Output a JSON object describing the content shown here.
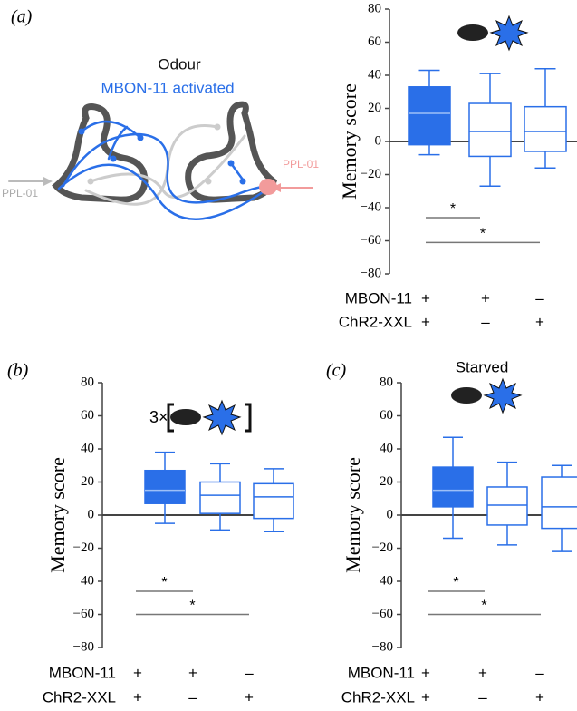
{
  "diagram": {
    "title": "Odour",
    "subtitle": "MBON-11 activated",
    "left_label": "PPL-01",
    "right_label": "PPL-01"
  },
  "chart_data": [
    {
      "type": "box",
      "panel": "(a)",
      "ylabel": "Memory score",
      "color": "#2a6fe8",
      "ylim": [
        -80,
        80
      ],
      "yticks": [
        80,
        60,
        40,
        20,
        0,
        {
          "value": -20,
          "label": "−20"
        },
        {
          "value": -40,
          "label": "−40"
        },
        {
          "value": -60,
          "label": "−60"
        },
        {
          "value": -80,
          "label": "−80"
        }
      ],
      "boxes": [
        {
          "whislo": -8,
          "q1": -2,
          "med": 17,
          "q3": 33,
          "whishi": 43,
          "filled": true
        },
        {
          "whislo": -27,
          "q1": -9,
          "med": 6,
          "q3": 23,
          "whishi": 41,
          "filled": false
        },
        {
          "whislo": -16,
          "q1": -6,
          "med": 6,
          "q3": 21,
          "whishi": 44,
          "filled": false
        }
      ],
      "rows": [
        {
          "name": "MBON-11",
          "marks": [
            "+",
            "+",
            "–"
          ]
        },
        {
          "name": "ChR2-XXL",
          "marks": [
            "+",
            "–",
            "+"
          ]
        }
      ],
      "significance": [
        {
          "y": -46,
          "span": [
            0,
            1
          ],
          "label": "*"
        },
        {
          "y": -61,
          "span": [
            0,
            2
          ],
          "label": "*"
        }
      ]
    },
    {
      "type": "box",
      "panel": "(b)",
      "ylabel": "Memory score",
      "annotation": "3×",
      "color": "#2a6fe8",
      "ylim": [
        -80,
        80
      ],
      "yticks": [
        80,
        60,
        40,
        20,
        0,
        {
          "value": -20,
          "label": "−20"
        },
        {
          "value": -40,
          "label": "−40"
        },
        {
          "value": -60,
          "label": "−60"
        },
        {
          "value": -80,
          "label": "−80"
        }
      ],
      "boxes": [
        {
          "whislo": -5,
          "q1": 7,
          "med": 15,
          "q3": 27,
          "whishi": 38,
          "filled": true
        },
        {
          "whislo": -9,
          "q1": 1,
          "med": 12,
          "q3": 20,
          "whishi": 31,
          "filled": false
        },
        {
          "whislo": -10,
          "q1": -2,
          "med": 11,
          "q3": 19,
          "whishi": 28,
          "filled": false
        }
      ],
      "rows": [
        {
          "name": "MBON-11",
          "marks": [
            "+",
            "+",
            "–"
          ]
        },
        {
          "name": "ChR2-XXL",
          "marks": [
            "+",
            "–",
            "+"
          ]
        }
      ],
      "significance": [
        {
          "y": -46,
          "span": [
            0,
            1
          ],
          "label": "*"
        },
        {
          "y": -60,
          "span": [
            0,
            2
          ],
          "label": "*"
        }
      ]
    },
    {
      "type": "box",
      "panel": "(c)",
      "title": "Starved",
      "ylabel": "Memory score",
      "color": "#2a6fe8",
      "ylim": [
        -80,
        80
      ],
      "yticks": [
        80,
        60,
        40,
        20,
        0,
        {
          "value": -20,
          "label": "−20"
        },
        {
          "value": -40,
          "label": "−40"
        },
        {
          "value": -60,
          "label": "−60"
        },
        {
          "value": -80,
          "label": "−80"
        }
      ],
      "boxes": [
        {
          "whislo": -14,
          "q1": 5,
          "med": 15,
          "q3": 29,
          "whishi": 47,
          "filled": true
        },
        {
          "whislo": -18,
          "q1": -6,
          "med": 6,
          "q3": 17,
          "whishi": 32,
          "filled": false
        },
        {
          "whislo": -22,
          "q1": -8,
          "med": 5,
          "q3": 23,
          "whishi": 30,
          "filled": false
        }
      ],
      "rows": [
        {
          "name": "MBON-11",
          "marks": [
            "+",
            "+",
            "–"
          ]
        },
        {
          "name": "ChR2-XXL",
          "marks": [
            "+",
            "–",
            "+"
          ]
        }
      ],
      "significance": [
        {
          "y": -46,
          "span": [
            0,
            1
          ],
          "label": "*"
        },
        {
          "y": -60,
          "span": [
            0,
            2
          ],
          "label": "*"
        }
      ]
    }
  ]
}
